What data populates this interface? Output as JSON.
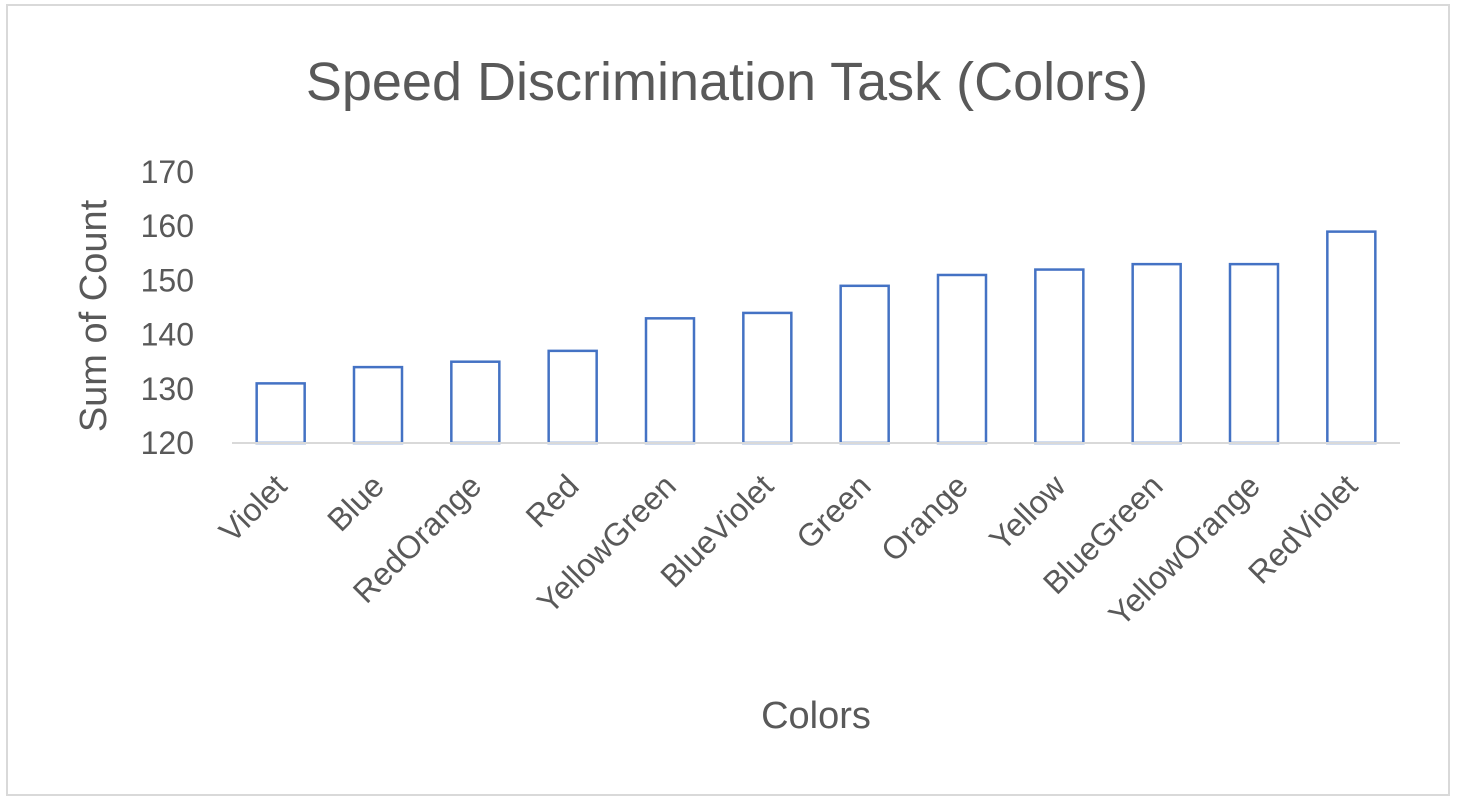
{
  "chart_data": {
    "type": "bar",
    "title": "Speed Discrimination Task (Colors)",
    "xlabel": "Colors",
    "ylabel": "Sum of Count",
    "categories": [
      "Violet",
      "Blue",
      "RedOrange",
      "Red",
      "YellowGreen",
      "BlueViolet",
      "Green",
      "Orange",
      "Yellow",
      "BlueGreen",
      "YellowOrange",
      "RedViolet"
    ],
    "values": [
      131,
      134,
      135,
      137,
      143,
      144,
      149,
      151,
      152,
      153,
      153,
      159
    ],
    "ylim": [
      120,
      170
    ],
    "yticks": [
      120,
      130,
      140,
      150,
      160,
      170
    ],
    "grid": false,
    "legend": "none",
    "colors": {
      "bar_stroke": "#4472c4",
      "bar_fill": "#ffffff",
      "axis": "#d9d9d9",
      "text": "#595959"
    }
  }
}
